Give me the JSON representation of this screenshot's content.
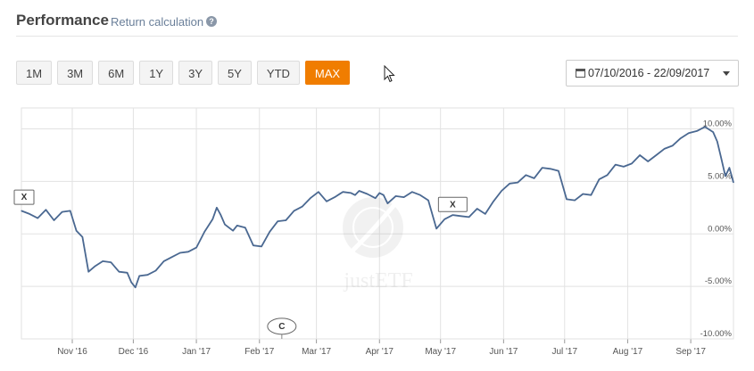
{
  "header": {
    "title": "Performance",
    "subtitle": "Return calculation",
    "help_icon": "question-circle-icon"
  },
  "range_buttons": [
    {
      "label": "1M",
      "active": false
    },
    {
      "label": "3M",
      "active": false
    },
    {
      "label": "6M",
      "active": false
    },
    {
      "label": "1Y",
      "active": false
    },
    {
      "label": "3Y",
      "active": false
    },
    {
      "label": "5Y",
      "active": false
    },
    {
      "label": "YTD",
      "active": false
    },
    {
      "label": "MAX",
      "active": true
    }
  ],
  "date_range": {
    "label": "07/10/2016 - 22/09/2017",
    "icon": "calendar-icon"
  },
  "colors": {
    "accent": "#f07d00",
    "line": "#4a6891",
    "grid": "#e2e2e2"
  },
  "watermark": "justETF",
  "chart_data": {
    "type": "line",
    "title": "",
    "xlabel": "",
    "ylabel": "",
    "ylim": [
      -10,
      12
    ],
    "yticks": [
      "10.00%",
      "5.00%",
      "0.00%",
      "-5.00%",
      "-10.00%"
    ],
    "ytick_values": [
      10,
      5,
      0,
      -5,
      -10
    ],
    "xticks": [
      "Nov '16",
      "Dec '16",
      "Jan '17",
      "Feb '17",
      "Mar '17",
      "Apr '17",
      "May '17",
      "Jun '17",
      "Jul '17",
      "Aug '17",
      "Sep '17"
    ],
    "x_unit": "days since 07/10/2016",
    "xlim": [
      0,
      350
    ],
    "xtick_values": [
      25,
      55,
      86,
      117,
      145,
      176,
      206,
      237,
      267,
      298,
      329
    ],
    "grid": true,
    "series": [
      {
        "name": "",
        "x": [
          0,
          4,
          8,
          12,
          16,
          20,
          24,
          27,
          30,
          33,
          36,
          40,
          44,
          48,
          52,
          54,
          56,
          58,
          62,
          66,
          70,
          74,
          78,
          82,
          86,
          90,
          94,
          96,
          98,
          100,
          104,
          106,
          110,
          114,
          118,
          122,
          126,
          130,
          134,
          138,
          142,
          146,
          150,
          154,
          158,
          162,
          164,
          166,
          170,
          174,
          176,
          178,
          180,
          184,
          188,
          192,
          196,
          200,
          204,
          208,
          212,
          216,
          220,
          224,
          228,
          232,
          236,
          240,
          244,
          248,
          252,
          256,
          260,
          264,
          268,
          272,
          276,
          280,
          284,
          288,
          292,
          296,
          300,
          304,
          308,
          312,
          316,
          320,
          324,
          328,
          332,
          336,
          340,
          342,
          344,
          346,
          348,
          350
        ],
        "y": [
          2.2,
          1.9,
          1.5,
          2.3,
          1.3,
          2.1,
          2.2,
          0.3,
          -0.3,
          -3.6,
          -3.1,
          -2.6,
          -2.7,
          -3.6,
          -3.7,
          -4.6,
          -5.1,
          -4.0,
          -3.9,
          -3.5,
          -2.6,
          -2.2,
          -1.8,
          -1.7,
          -1.3,
          0.2,
          1.4,
          2.5,
          1.8,
          0.9,
          0.3,
          0.8,
          0.6,
          -1.1,
          -1.2,
          0.2,
          1.2,
          1.3,
          2.2,
          2.6,
          3.4,
          4.0,
          3.1,
          3.5,
          4.0,
          3.9,
          3.7,
          4.1,
          3.8,
          3.4,
          3.9,
          3.7,
          2.9,
          3.6,
          3.5,
          4.0,
          3.7,
          3.2,
          0.5,
          1.4,
          1.8,
          1.7,
          1.6,
          2.4,
          1.9,
          3.1,
          4.1,
          4.8,
          4.9,
          5.6,
          5.3,
          6.3,
          6.2,
          6.0,
          3.3,
          3.2,
          3.8,
          3.7,
          5.2,
          5.6,
          6.6,
          6.4,
          6.7,
          7.5,
          6.9,
          7.5,
          8.1,
          8.4,
          9.1,
          9.6,
          9.8,
          10.2,
          9.7,
          8.8,
          7.2,
          5.5,
          6.3,
          4.9
        ]
      }
    ],
    "annotations": [
      {
        "text": "X",
        "x": 0,
        "y": 3.5
      },
      {
        "text": "X",
        "x": 212,
        "y": 2.8
      },
      {
        "text": "C",
        "x": 128,
        "y": -8.8
      }
    ]
  }
}
